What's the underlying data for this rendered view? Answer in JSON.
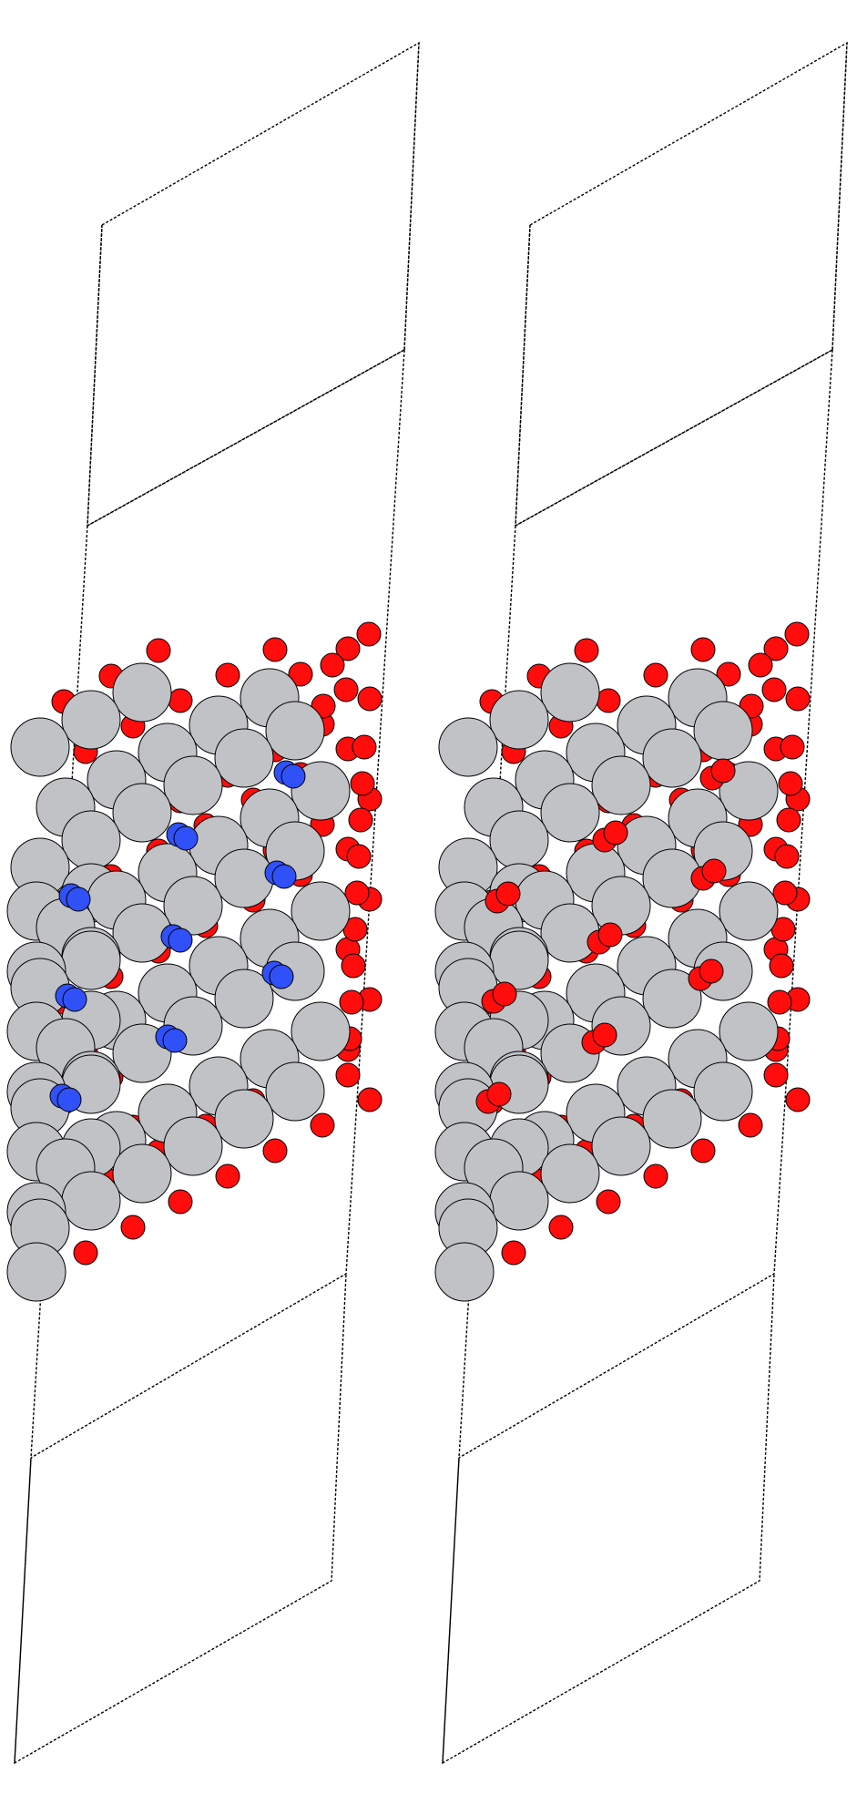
{
  "figure": {
    "type": "atomistic-slab-render",
    "background_color": "#ffffff",
    "panels": [
      {
        "id": "left-slab",
        "species": [
          "metal",
          "oxygen",
          "nitrogen"
        ]
      },
      {
        "id": "right-slab",
        "species": [
          "metal",
          "oxygen"
        ]
      }
    ],
    "atom_colors": {
      "metal": "#c0c2c6",
      "oxygen": "#ff0d0d",
      "nitrogen": "#3050f8"
    },
    "cell_line_color": "#000000",
    "cell_line_style": "dotted"
  }
}
